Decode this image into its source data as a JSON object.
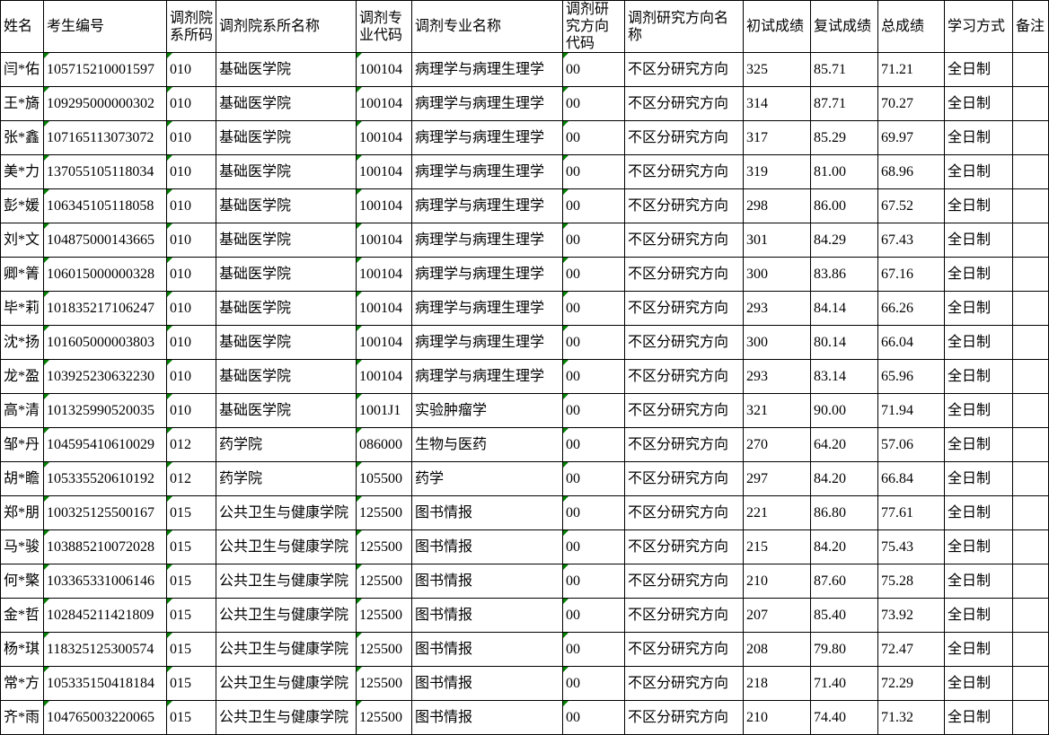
{
  "table": {
    "flag_color": "#008000",
    "study_mode_all": "全日制",
    "columns": [
      {
        "key": "name",
        "label": "姓名",
        "width": 48,
        "flag": false
      },
      {
        "key": "candidate_no",
        "label": "考生编号",
        "width": 137,
        "flag": true
      },
      {
        "key": "dept_code",
        "label": "调剂院系所码",
        "width": 55,
        "flag": true
      },
      {
        "key": "dept_name",
        "label": "调剂院系所名称",
        "width": 156,
        "flag": false
      },
      {
        "key": "major_code",
        "label": "调剂专业代码",
        "width": 62,
        "flag": true
      },
      {
        "key": "major_name",
        "label": "调剂专业名称",
        "width": 168,
        "flag": false
      },
      {
        "key": "direction_code",
        "label": "调剂研究方向代码",
        "width": 69,
        "flag": true
      },
      {
        "key": "direction_name",
        "label": "调剂研究方向名称",
        "width": 132,
        "flag": false
      },
      {
        "key": "initial_score",
        "label": "初试成绩",
        "width": 75,
        "flag": false
      },
      {
        "key": "retest_score",
        "label": "复试成绩",
        "width": 75,
        "flag": false
      },
      {
        "key": "total_score",
        "label": "总成绩",
        "width": 74,
        "flag": false
      },
      {
        "key": "study_mode",
        "label": "学习方式",
        "width": 76,
        "flag": false
      },
      {
        "key": "remarks",
        "label": "备注",
        "width": 40,
        "flag": false
      }
    ],
    "rows": [
      [
        "闫*佑",
        "105715210001597",
        "010",
        "基础医学院",
        "100104",
        "病理学与病理生理学",
        "00",
        "不区分研究方向",
        "325",
        "85.71",
        "71.21",
        "全日制",
        ""
      ],
      [
        "王*旖",
        "109295000000302",
        "010",
        "基础医学院",
        "100104",
        "病理学与病理生理学",
        "00",
        "不区分研究方向",
        "314",
        "87.71",
        "70.27",
        "全日制",
        ""
      ],
      [
        "张*鑫",
        "107165113073072",
        "010",
        "基础医学院",
        "100104",
        "病理学与病理生理学",
        "00",
        "不区分研究方向",
        "317",
        "85.29",
        "69.97",
        "全日制",
        ""
      ],
      [
        "美*力",
        "137055105118034",
        "010",
        "基础医学院",
        "100104",
        "病理学与病理生理学",
        "00",
        "不区分研究方向",
        "319",
        "81.00",
        "68.96",
        "全日制",
        ""
      ],
      [
        "彭*媛",
        "106345105118058",
        "010",
        "基础医学院",
        "100104",
        "病理学与病理生理学",
        "00",
        "不区分研究方向",
        "298",
        "86.00",
        "67.52",
        "全日制",
        ""
      ],
      [
        "刘*文",
        "104875000143665",
        "010",
        "基础医学院",
        "100104",
        "病理学与病理生理学",
        "00",
        "不区分研究方向",
        "301",
        "84.29",
        "67.43",
        "全日制",
        ""
      ],
      [
        "卿*箐",
        "106015000000328",
        "010",
        "基础医学院",
        "100104",
        "病理学与病理生理学",
        "00",
        "不区分研究方向",
        "300",
        "83.86",
        "67.16",
        "全日制",
        ""
      ],
      [
        "毕*莉",
        "101835217106247",
        "010",
        "基础医学院",
        "100104",
        "病理学与病理生理学",
        "00",
        "不区分研究方向",
        "293",
        "84.14",
        "66.26",
        "全日制",
        ""
      ],
      [
        "沈*扬",
        "101605000003803",
        "010",
        "基础医学院",
        "100104",
        "病理学与病理生理学",
        "00",
        "不区分研究方向",
        "300",
        "80.14",
        "66.04",
        "全日制",
        ""
      ],
      [
        "龙*盈",
        "103925230632230",
        "010",
        "基础医学院",
        "100104",
        "病理学与病理生理学",
        "00",
        "不区分研究方向",
        "293",
        "83.14",
        "65.96",
        "全日制",
        ""
      ],
      [
        "高*清",
        "101325990520035",
        "010",
        "基础医学院",
        "1001J1",
        "实验肿瘤学",
        "00",
        "不区分研究方向",
        "321",
        "90.00",
        "71.94",
        "全日制",
        ""
      ],
      [
        "邹*丹",
        "104595410610029",
        "012",
        "药学院",
        "086000",
        "生物与医药",
        "00",
        "不区分研究方向",
        "270",
        "64.20",
        "57.06",
        "全日制",
        ""
      ],
      [
        "胡*瞻",
        "105335520610192",
        "012",
        "药学院",
        "105500",
        "药学",
        "00",
        "不区分研究方向",
        "297",
        "84.20",
        "66.84",
        "全日制",
        ""
      ],
      [
        "郑*朋",
        "100325125500167",
        "015",
        "公共卫生与健康学院",
        "125500",
        "图书情报",
        "00",
        "不区分研究方向",
        "221",
        "86.80",
        "77.61",
        "全日制",
        ""
      ],
      [
        "马*骏",
        "103885210072028",
        "015",
        "公共卫生与健康学院",
        "125500",
        "图书情报",
        "00",
        "不区分研究方向",
        "215",
        "84.20",
        "75.43",
        "全日制",
        ""
      ],
      [
        "何*檠",
        "103365331006146",
        "015",
        "公共卫生与健康学院",
        "125500",
        "图书情报",
        "00",
        "不区分研究方向",
        "210",
        "87.60",
        "75.28",
        "全日制",
        ""
      ],
      [
        "金*哲",
        "102845211421809",
        "015",
        "公共卫生与健康学院",
        "125500",
        "图书情报",
        "00",
        "不区分研究方向",
        "207",
        "85.40",
        "73.92",
        "全日制",
        ""
      ],
      [
        "杨*琪",
        "118325125300574",
        "015",
        "公共卫生与健康学院",
        "125500",
        "图书情报",
        "00",
        "不区分研究方向",
        "208",
        "79.80",
        "72.47",
        "全日制",
        ""
      ],
      [
        "常*方",
        "105335150418184",
        "015",
        "公共卫生与健康学院",
        "125500",
        "图书情报",
        "00",
        "不区分研究方向",
        "218",
        "71.40",
        "72.29",
        "全日制",
        ""
      ],
      [
        "齐*雨",
        "104765003220065",
        "015",
        "公共卫生与健康学院",
        "125500",
        "图书情报",
        "00",
        "不区分研究方向",
        "210",
        "74.40",
        "71.32",
        "全日制",
        ""
      ]
    ]
  }
}
